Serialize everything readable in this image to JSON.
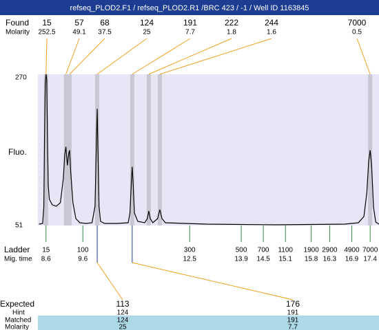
{
  "chart_data": {
    "type": "electropherogram",
    "title": "refseq_PLOD2.F1 / refseq_PLOD2.R1 /BRC 423 / -1 / Well ID 1163845",
    "labels": {
      "found": "Found",
      "molarity": "Molarity",
      "fluo": "Fluo.",
      "ladder": "Ladder",
      "mig_time": "Mig. time",
      "expected": "Expected",
      "hint": "Hint",
      "matched": "Matched",
      "bottom_molarity": "Molarity"
    },
    "ylim": [
      51,
      270
    ],
    "yticks": [
      270,
      51
    ],
    "xlim": [
      8.38,
      17.64
    ],
    "found": {
      "sizes": [
        15,
        57,
        68,
        124,
        191,
        222,
        244,
        7000
      ],
      "molarity": [
        252.5,
        49.1,
        37.5,
        25,
        7.7,
        1.8,
        1.6,
        0.5
      ],
      "times": [
        8.6,
        9.14,
        9.24,
        9.99,
        10.94,
        11.39,
        11.69,
        17.4
      ]
    },
    "ladder": {
      "sizes": [
        15,
        100,
        300,
        500,
        700,
        1100,
        1900,
        2900,
        4900,
        7000
      ],
      "times": [
        8.6,
        9.6,
        12.5,
        13.9,
        14.5,
        15.1,
        15.8,
        16.3,
        16.9,
        17.4
      ]
    },
    "expected": {
      "values": [
        113,
        176
      ],
      "hint": [
        124,
        191
      ],
      "matched": [
        124,
        191
      ],
      "molarity": [
        25,
        7.7
      ]
    },
    "trace": {
      "x": [
        8.41,
        8.51,
        8.54,
        8.56,
        8.58,
        8.6,
        8.62,
        8.64,
        8.66,
        8.69,
        8.77,
        8.88,
        8.99,
        9.07,
        9.11,
        9.14,
        9.18,
        9.22,
        9.24,
        9.27,
        9.33,
        9.41,
        9.52,
        9.69,
        9.85,
        9.93,
        9.97,
        9.99,
        10.0,
        10.04,
        10.08,
        10.19,
        10.53,
        10.83,
        10.88,
        10.92,
        10.94,
        10.96,
        11.0,
        11.09,
        11.28,
        11.35,
        11.39,
        11.43,
        11.5,
        11.63,
        11.69,
        11.75,
        11.84,
        12.96,
        14.84,
        16.71,
        17.08,
        17.23,
        17.31,
        17.36,
        17.4,
        17.44,
        17.49,
        17.55,
        17.64
      ],
      "values": [
        53,
        54,
        78,
        177,
        257,
        270,
        263,
        178,
        109,
        89,
        81,
        79,
        84,
        119,
        154,
        165,
        138,
        156,
        160,
        129,
        84,
        61,
        55,
        54,
        55,
        79,
        178,
        220,
        188,
        79,
        57,
        54,
        54,
        55,
        69,
        118,
        136,
        118,
        69,
        57,
        55,
        61,
        72,
        61,
        55,
        61,
        74,
        61,
        55,
        53,
        52,
        53,
        55,
        64,
        99,
        144,
        160,
        138,
        78,
        56,
        53
      ]
    }
  }
}
